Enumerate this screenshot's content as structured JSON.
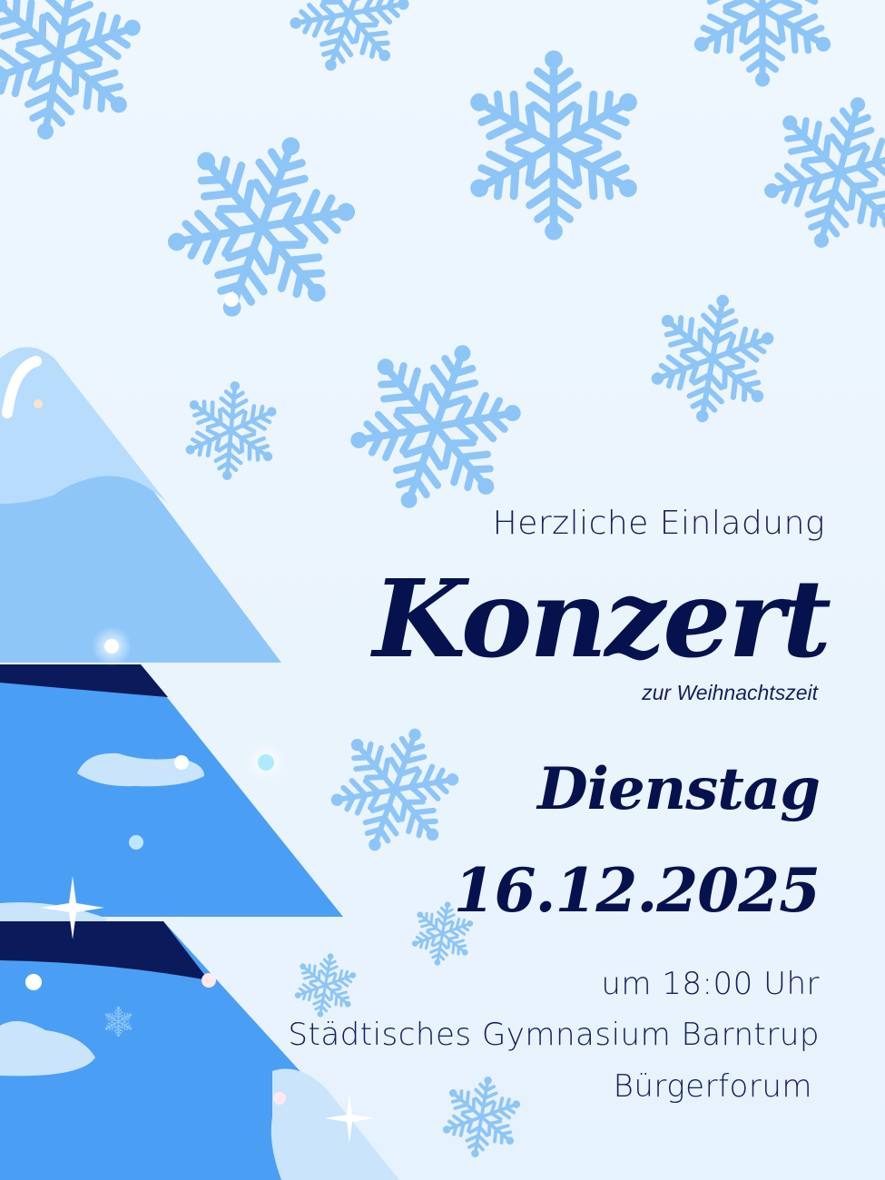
{
  "poster": {
    "invitation": "Herzliche Einladung",
    "title": "Konzert",
    "subtitle": "zur Weihnachtszeit",
    "weekday": "Dienstag",
    "date": "16.12.2025",
    "time": "um 18:00 Uhr",
    "venue": "Städtisches Gymnasium Barntrup",
    "room": "Bürgerforum"
  },
  "colors": {
    "background": "#eef7fe",
    "snowflake": "#8ec5f7",
    "text": "#06124e",
    "tree_light": "#8ec6f8",
    "tree_mid": "#4a9ff5",
    "tree_dark": "#0b1a5a",
    "snow": "#c9e4fb"
  },
  "icons": [
    "snowflake-icon",
    "christmas-tree-illustration",
    "sparkle-icon"
  ]
}
